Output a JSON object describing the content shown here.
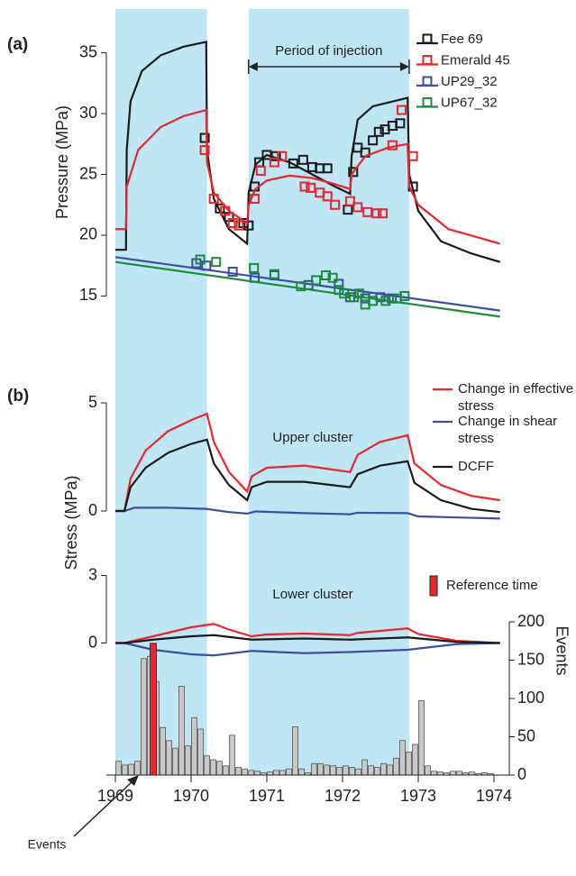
{
  "chart_data": [
    {
      "type": "scatter",
      "panel_label": "(a)",
      "ylabel": "Pressure (MPa)",
      "annotation": "Period of injection",
      "injection_periods": [
        [
          1969.0,
          1970.21
        ],
        [
          1970.76,
          1972.88
        ]
      ],
      "xlim": [
        1968.9,
        1974.15
      ],
      "ylim": [
        13.7,
        38.6
      ],
      "yticks": [
        15,
        20,
        25,
        30,
        35
      ],
      "series": [
        {
          "name": "Fee 69",
          "color": "#1a1a1a",
          "x": [
            1970.18,
            1970.38,
            1970.5,
            1970.69,
            1970.76,
            1970.84,
            1970.9,
            1971.0,
            1971.12,
            1971.35,
            1971.48,
            1971.6,
            1971.7,
            1971.8,
            1972.07,
            1972.14,
            1972.2,
            1972.3,
            1972.4,
            1972.48,
            1972.56,
            1972.66,
            1972.76,
            1972.93
          ],
          "values": [
            28.0,
            22.2,
            21.5,
            21.0,
            20.8,
            24.0,
            26.0,
            26.6,
            26.5,
            25.9,
            26.2,
            25.6,
            25.5,
            25.5,
            22.1,
            25.2,
            27.2,
            26.8,
            27.8,
            28.5,
            28.7,
            29.0,
            29.2,
            24.0
          ],
          "line_x": [
            1969.0,
            1969.14,
            1969.15,
            1969.2,
            1969.35,
            1969.6,
            1969.9,
            1970.2,
            1970.21,
            1970.3,
            1970.5,
            1970.74,
            1970.76,
            1970.85,
            1971.0,
            1971.3,
            1971.6,
            1971.9,
            1972.1,
            1972.12,
            1972.2,
            1972.4,
            1972.86,
            1972.88,
            1973.0,
            1973.3,
            1973.7,
            1974.08
          ],
          "line_values": [
            18.8,
            18.8,
            27,
            31,
            33.5,
            34.8,
            35.5,
            35.9,
            27,
            23,
            20.5,
            19.3,
            23.5,
            25.8,
            26.6,
            26,
            25,
            24,
            23.4,
            26.5,
            29.5,
            30.6,
            31.3,
            25,
            22,
            19.5,
            18.5,
            17.8
          ]
        },
        {
          "name": "Emerald 45",
          "color": "#e8262b",
          "x": [
            1970.18,
            1970.3,
            1970.45,
            1970.55,
            1970.63,
            1970.84,
            1970.92,
            1971.1,
            1971.2,
            1971.5,
            1971.58,
            1971.7,
            1971.8,
            1971.9,
            1972.1,
            1972.2,
            1972.33,
            1972.45,
            1972.53,
            1972.66,
            1972.78,
            1972.93
          ],
          "values": [
            27.0,
            23.0,
            22.0,
            21.0,
            20.8,
            23.0,
            25.3,
            26.0,
            26.5,
            24.0,
            23.9,
            23.5,
            23.2,
            22.5,
            22.8,
            22.3,
            21.9,
            21.8,
            21.8,
            27.4,
            30.3,
            26.5
          ],
          "line_x": [
            1969.0,
            1969.14,
            1969.15,
            1969.3,
            1969.6,
            1969.9,
            1970.2,
            1970.21,
            1970.3,
            1970.5,
            1970.74,
            1970.76,
            1970.85,
            1971.0,
            1971.3,
            1971.6,
            1971.9,
            1972.1,
            1972.12,
            1972.3,
            1972.6,
            1972.86,
            1972.88,
            1973.0,
            1973.4,
            1973.8,
            1974.08
          ],
          "line_values": [
            20.5,
            20.5,
            24,
            27,
            28.9,
            29.8,
            30.3,
            26,
            23.5,
            22,
            21,
            22.5,
            23.8,
            24.5,
            24.9,
            24.7,
            24.2,
            23.8,
            25,
            26.5,
            27.2,
            27.5,
            24,
            22.5,
            20.5,
            19.8,
            19.3
          ]
        },
        {
          "name": "UP29_32",
          "color": "#3a4fa0",
          "x": [
            1970.07,
            1970.2,
            1970.55,
            1970.84,
            1971.1,
            1971.55,
            1971.95,
            1972.1,
            1972.3,
            1972.5,
            1972.65
          ],
          "values": [
            17.7,
            17.5,
            17.0,
            16.5,
            16.7,
            15.9,
            16.0,
            14.9,
            14.8,
            14.9,
            14.8
          ],
          "line_x": [
            1969.0,
            1974.08
          ],
          "line_values": [
            18.2,
            13.8
          ]
        },
        {
          "name": "UP67_32",
          "color": "#1e8a3c",
          "x": [
            1970.12,
            1970.33,
            1970.83,
            1971.1,
            1971.45,
            1971.65,
            1971.78,
            1971.87,
            1971.95,
            1972.02,
            1972.15,
            1972.22,
            1972.3,
            1972.4,
            1972.57,
            1972.72,
            1972.82
          ],
          "values": [
            18.0,
            17.8,
            17.3,
            16.8,
            15.8,
            16.3,
            16.7,
            16.5,
            15.5,
            15.2,
            14.9,
            15.2,
            14.3,
            14.6,
            14.6,
            14.8,
            15.0
          ],
          "line_x": [
            1969.0,
            1974.08
          ],
          "line_values": [
            17.8,
            13.3
          ]
        }
      ]
    },
    {
      "type": "line",
      "panel_label": "(b)",
      "ylabel": "Stress (MPa)",
      "annotation": "Upper cluster",
      "xlim": [
        1968.9,
        1974.15
      ],
      "ylim": [
        -0.5,
        5.5
      ],
      "yticks": [
        0,
        5
      ],
      "series": [
        {
          "name": "Change in effective stress",
          "color": "#e8262b",
          "x": [
            1969,
            1969.12,
            1969.2,
            1969.4,
            1969.7,
            1970.0,
            1970.21,
            1970.3,
            1970.5,
            1970.74,
            1970.8,
            1971.0,
            1971.5,
            1972.1,
            1972.2,
            1972.5,
            1972.86,
            1972.95,
            1973.3,
            1973.7,
            1974.08
          ],
          "values": [
            0,
            0,
            1.5,
            2.8,
            3.7,
            4.2,
            4.5,
            3.2,
            1.8,
            0.9,
            1.6,
            2.0,
            2.1,
            1.8,
            2.6,
            3.2,
            3.5,
            2.2,
            1.2,
            0.7,
            0.5
          ]
        },
        {
          "name": "Change in shear stress",
          "color": "#3a4fa0",
          "x": [
            1969,
            1969.12,
            1969.25,
            1969.7,
            1970.2,
            1970.5,
            1970.74,
            1970.85,
            1971.5,
            1972.1,
            1972.2,
            1972.86,
            1973.0,
            1974.08
          ],
          "values": [
            0,
            0,
            0.15,
            0.15,
            0.1,
            -0.05,
            -0.12,
            -0.02,
            -0.1,
            -0.15,
            -0.08,
            -0.1,
            -0.25,
            -0.35
          ]
        },
        {
          "name": "DCFF",
          "color": "#1a1a1a",
          "x": [
            1969,
            1969.12,
            1969.2,
            1969.4,
            1969.7,
            1970.0,
            1970.21,
            1970.3,
            1970.5,
            1970.74,
            1970.8,
            1971.0,
            1971.5,
            1972.1,
            1972.2,
            1972.5,
            1972.86,
            1972.95,
            1973.3,
            1973.7,
            1974.08
          ],
          "values": [
            0,
            0,
            1.1,
            2.0,
            2.7,
            3.1,
            3.3,
            2.2,
            1.2,
            0.5,
            1.1,
            1.35,
            1.35,
            1.1,
            1.7,
            2.1,
            2.3,
            1.3,
            0.5,
            0.1,
            -0.05
          ]
        }
      ]
    },
    {
      "type": "line",
      "annotation": "Lower cluster",
      "xlim": [
        1968.9,
        1974.15
      ],
      "ylim": [
        -0.5,
        3.3
      ],
      "yticks": [
        0,
        3
      ],
      "series": [
        {
          "color": "#e8262b",
          "x": [
            1969,
            1969.12,
            1969.5,
            1970.0,
            1970.3,
            1970.5,
            1970.8,
            1971.0,
            1971.5,
            1972.1,
            1972.2,
            1972.86,
            1973.0,
            1973.5,
            1974.08
          ],
          "values": [
            0,
            0,
            0.3,
            0.7,
            0.85,
            0.6,
            0.3,
            0.38,
            0.42,
            0.35,
            0.45,
            0.65,
            0.4,
            0.1,
            0
          ]
        },
        {
          "color": "#3a4fa0",
          "x": [
            1969,
            1969.12,
            1969.5,
            1970.0,
            1970.3,
            1970.8,
            1971.5,
            1972.1,
            1972.86,
            1973.5,
            1974.08
          ],
          "values": [
            0,
            0,
            -0.3,
            -0.5,
            -0.55,
            -0.35,
            -0.45,
            -0.4,
            -0.3,
            -0.05,
            0
          ]
        },
        {
          "color": "#1a1a1a",
          "x": [
            1969,
            1969.12,
            1969.5,
            1970.0,
            1970.3,
            1970.8,
            1971.5,
            1972.1,
            1972.86,
            1973.5,
            1974.08
          ],
          "values": [
            0,
            0,
            0.15,
            0.3,
            0.35,
            0.15,
            0.2,
            0.15,
            0.25,
            0.05,
            0
          ]
        }
      ]
    },
    {
      "type": "histogram",
      "ylabel": "Events",
      "annotation": "Events",
      "color": "#c8c8c8",
      "xlim": [
        1968.9,
        1974.15
      ],
      "xticks": [
        1969,
        1970,
        1971,
        1972,
        1973,
        1974
      ],
      "y2lim": [
        0,
        200
      ],
      "y2ticks": [
        0,
        50,
        100,
        150,
        200
      ],
      "bins": [
        1969,
        1969.083,
        1969.167,
        1969.25,
        1969.333,
        1969.417,
        1969.5,
        1969.583,
        1969.667,
        1969.75,
        1969.833,
        1969.917,
        1970,
        1970.083,
        1970.167,
        1970.25,
        1970.333,
        1970.417,
        1970.5,
        1970.583,
        1970.667,
        1970.75,
        1970.833,
        1970.917,
        1971,
        1971.083,
        1971.167,
        1971.25,
        1971.333,
        1971.417,
        1971.5,
        1971.583,
        1971.667,
        1971.75,
        1971.833,
        1971.917,
        1972,
        1972.083,
        1972.167,
        1972.25,
        1972.333,
        1972.417,
        1972.5,
        1972.583,
        1972.667,
        1972.75,
        1972.833,
        1972.917,
        1973,
        1973.083,
        1973.167,
        1973.25,
        1973.333,
        1973.417,
        1973.5,
        1973.583,
        1973.667,
        1973.75,
        1973.833,
        1973.917,
        1974
      ],
      "values": [
        18,
        13,
        14,
        18,
        152,
        155,
        122,
        62,
        45,
        35,
        116,
        38,
        75,
        60,
        25,
        20,
        18,
        12,
        52,
        10,
        8,
        6,
        5,
        3,
        4,
        6,
        6,
        8,
        63,
        8,
        3,
        15,
        15,
        13,
        12,
        10,
        12,
        10,
        8,
        20,
        12,
        10,
        15,
        13,
        22,
        45,
        30,
        40,
        97,
        12,
        5,
        4,
        3,
        5,
        5,
        3,
        4,
        2,
        3,
        2
      ],
      "reference": {
        "name": "Reference time",
        "color": "#e8262b",
        "x": 1969.5,
        "value": 172
      }
    }
  ]
}
